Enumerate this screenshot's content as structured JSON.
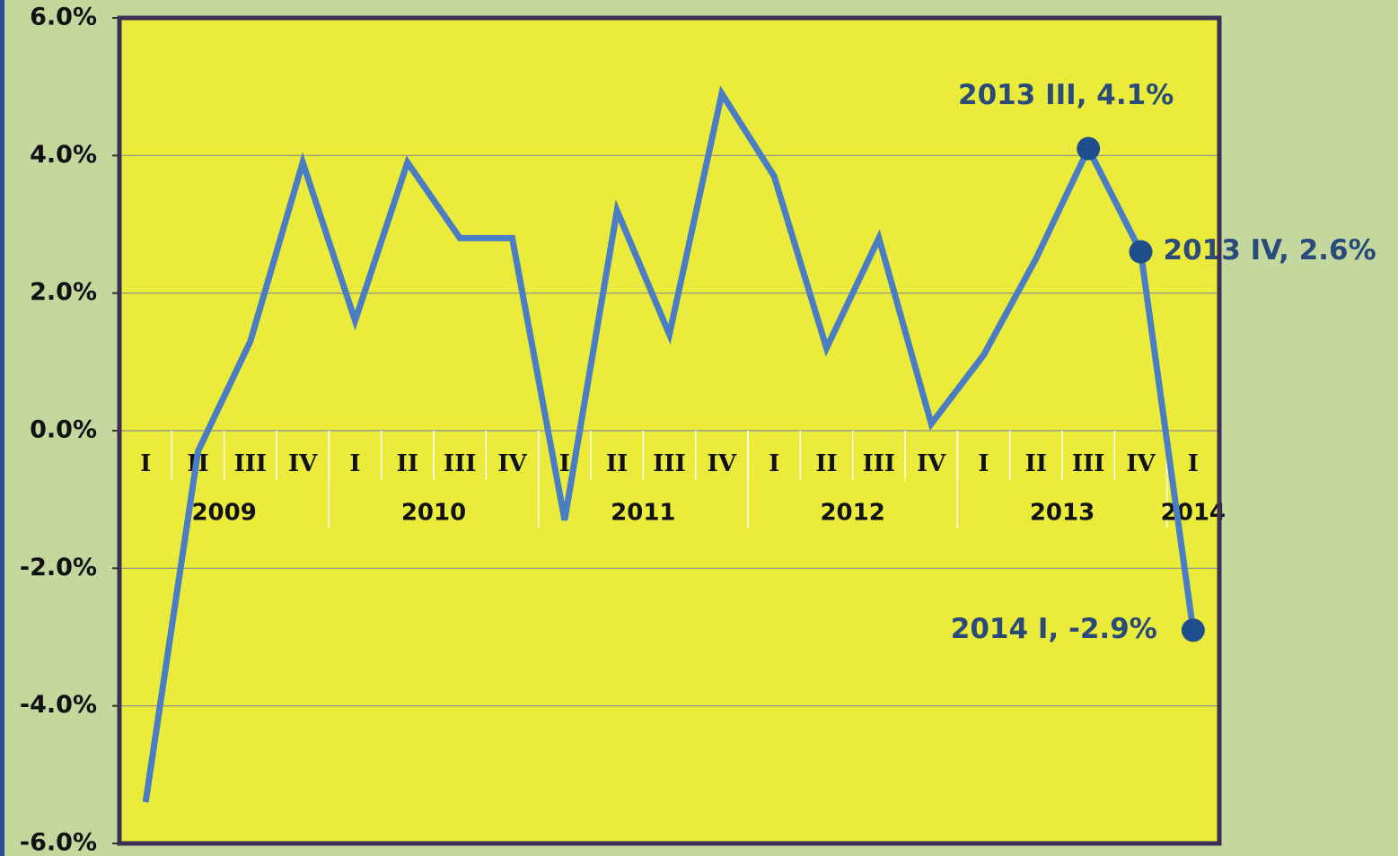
{
  "chart_data": {
    "type": "line",
    "category_groups": [
      {
        "label": "2009",
        "quarters": [
          "I",
          "II",
          "III",
          "IV"
        ]
      },
      {
        "label": "2010",
        "quarters": [
          "I",
          "II",
          "III",
          "IV"
        ]
      },
      {
        "label": "2011",
        "quarters": [
          "I",
          "II",
          "III",
          "IV"
        ]
      },
      {
        "label": "2012",
        "quarters": [
          "I",
          "II",
          "III",
          "IV"
        ]
      },
      {
        "label": "2013",
        "quarters": [
          "I",
          "II",
          "III",
          "IV"
        ]
      },
      {
        "label": "2014",
        "quarters": [
          "I"
        ]
      }
    ],
    "series": [
      {
        "color": "#4a7dc4",
        "marker_color": "#1f4e8c",
        "values": [
          -5.4,
          -0.3,
          1.3,
          3.9,
          1.6,
          3.9,
          2.8,
          2.8,
          -1.3,
          3.2,
          1.4,
          4.9,
          3.7,
          1.2,
          2.8,
          0.1,
          1.1,
          2.5,
          4.1,
          2.6,
          -2.9
        ]
      }
    ],
    "annotations": [
      {
        "index": 18,
        "text": "2013 III, 4.1%"
      },
      {
        "index": 19,
        "text": "2013 IV, 2.6%"
      },
      {
        "index": 20,
        "text": "2014 I, -2.9%"
      }
    ],
    "ylim": [
      -6,
      6
    ],
    "yticks": [
      {
        "value": -6,
        "label": "-6.0%"
      },
      {
        "value": -4,
        "label": "-4.0%"
      },
      {
        "value": -2,
        "label": "-2.0%"
      },
      {
        "value": 0,
        "label": "0.0%"
      },
      {
        "value": 2,
        "label": "2.0%"
      },
      {
        "value": 4,
        "label": "4.0%"
      },
      {
        "value": 6,
        "label": "6.0%"
      }
    ],
    "grid": true,
    "plot_color": "#ebeb3c"
  }
}
